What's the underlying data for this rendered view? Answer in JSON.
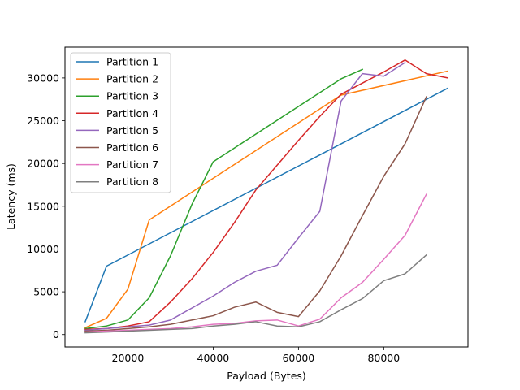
{
  "chart_data": {
    "type": "line",
    "title": "",
    "xlabel": "Payload (Bytes)",
    "ylabel": "Latency (ms)",
    "xlim": [
      5250,
      99750
    ],
    "ylim": [
      -1450,
      33600
    ],
    "xticks": [
      20000,
      40000,
      60000,
      80000
    ],
    "yticks": [
      0,
      5000,
      10000,
      15000,
      20000,
      25000,
      30000
    ],
    "grid": false,
    "legend_position": "top-left",
    "series": [
      {
        "name": "Partition 1",
        "color": "#1f77b4",
        "x": [
          10000,
          15000,
          95000
        ],
        "y": [
          1500,
          8000,
          28800
        ]
      },
      {
        "name": "Partition 2",
        "color": "#ff7f0e",
        "x": [
          10000,
          15000,
          20000,
          25000,
          70000,
          95000
        ],
        "y": [
          800,
          1900,
          5300,
          13400,
          28000,
          30800
        ]
      },
      {
        "name": "Partition 3",
        "color": "#2ca02c",
        "x": [
          10000,
          15000,
          20000,
          25000,
          30000,
          35000,
          40000,
          70000,
          75000
        ],
        "y": [
          700,
          1000,
          1700,
          4300,
          9200,
          15200,
          20200,
          29900,
          31000
        ]
      },
      {
        "name": "Partition 4",
        "color": "#d62728",
        "x": [
          10000,
          15000,
          20000,
          25000,
          30000,
          35000,
          40000,
          45000,
          50000,
          55000,
          60000,
          65000,
          70000,
          75000,
          80000,
          85000,
          90000,
          95000
        ],
        "y": [
          600,
          700,
          1000,
          1500,
          3800,
          6500,
          9600,
          13100,
          16900,
          19800,
          22700,
          25500,
          28100,
          29400,
          30700,
          32100,
          30500,
          30000
        ]
      },
      {
        "name": "Partition 5",
        "color": "#9467bd",
        "x": [
          10000,
          15000,
          20000,
          25000,
          30000,
          35000,
          40000,
          45000,
          50000,
          55000,
          60000,
          65000,
          70000,
          75000,
          80000,
          85000
        ],
        "y": [
          500,
          700,
          900,
          1100,
          1700,
          3100,
          4500,
          6100,
          7400,
          8100,
          11300,
          14400,
          27300,
          30500,
          30200,
          31800
        ]
      },
      {
        "name": "Partition 6",
        "color": "#8c564b",
        "x": [
          10000,
          15000,
          20000,
          25000,
          30000,
          35000,
          40000,
          45000,
          50000,
          55000,
          60000,
          65000,
          70000,
          75000,
          80000,
          85000,
          90000
        ],
        "y": [
          400,
          500,
          700,
          900,
          1200,
          1700,
          2200,
          3200,
          3800,
          2600,
          2100,
          5100,
          9200,
          13900,
          18500,
          22300,
          27800
        ]
      },
      {
        "name": "Partition 7",
        "color": "#e377c2",
        "x": [
          10000,
          15000,
          20000,
          25000,
          30000,
          35000,
          40000,
          45000,
          50000,
          55000,
          60000,
          65000,
          70000,
          75000,
          80000,
          85000,
          90000
        ],
        "y": [
          300,
          400,
          500,
          600,
          700,
          900,
          1200,
          1300,
          1600,
          1700,
          1000,
          1800,
          4300,
          6100,
          8800,
          11600,
          16400
        ]
      },
      {
        "name": "Partition 8",
        "color": "#7f7f7f",
        "x": [
          10000,
          15000,
          20000,
          25000,
          30000,
          35000,
          40000,
          45000,
          50000,
          55000,
          60000,
          65000,
          70000,
          75000,
          80000,
          85000,
          90000
        ],
        "y": [
          200,
          300,
          400,
          500,
          600,
          700,
          1000,
          1200,
          1500,
          1000,
          900,
          1500,
          2900,
          4200,
          6300,
          7100,
          9300
        ]
      }
    ]
  }
}
